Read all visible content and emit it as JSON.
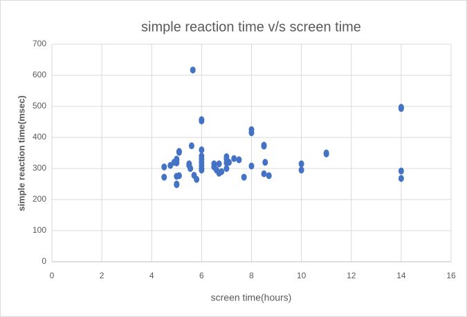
{
  "chart_data": {
    "type": "scatter",
    "title": "simple reaction time v/s screen time",
    "x_label": "screen time(hours)",
    "y_label": "simple reaction time(msec)",
    "color": "#4472c4",
    "grid": true,
    "xlim": [
      0,
      16
    ],
    "xticks": [
      0,
      2,
      4,
      6,
      8,
      10,
      12,
      14,
      16
    ],
    "ylim": [
      0,
      700
    ],
    "yticks": [
      0,
      100,
      200,
      300,
      400,
      500,
      600,
      700
    ],
    "x": [
      4.5,
      4.5,
      4.75,
      4.9,
      5,
      5,
      5,
      5,
      5,
      5,
      5.1,
      5.1,
      5.1,
      5.5,
      5.5,
      5.55,
      5.6,
      5.65,
      5.7,
      5.8,
      6,
      6,
      6,
      6,
      6,
      6,
      6,
      6,
      6,
      6.5,
      6.5,
      6.6,
      6.7,
      6.7,
      6.8,
      7,
      7,
      7,
      7,
      7.1,
      7.3,
      7.5,
      7.7,
      8,
      8,
      8,
      8.5,
      8.5,
      8.55,
      8.5,
      8.7,
      10,
      10,
      11,
      11,
      14,
      14,
      14,
      14
    ],
    "values": [
      305,
      272,
      310,
      320,
      325,
      330,
      318,
      275,
      250,
      248,
      352,
      355,
      277,
      315,
      310,
      300,
      373,
      617,
      278,
      265,
      457,
      453,
      360,
      340,
      330,
      320,
      310,
      300,
      295,
      315,
      305,
      295,
      315,
      285,
      290,
      338,
      330,
      318,
      300,
      320,
      332,
      328,
      272,
      425,
      415,
      308,
      375,
      372,
      320,
      283,
      277,
      315,
      295,
      350,
      347,
      497,
      493,
      292,
      268
    ]
  }
}
